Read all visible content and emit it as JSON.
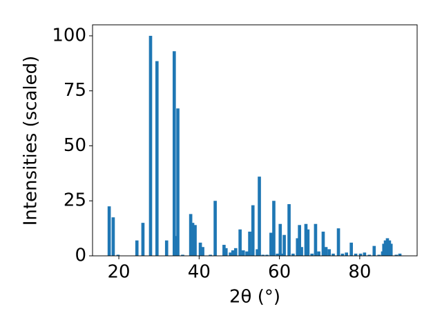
{
  "chart_data": {
    "type": "bar",
    "xlabel": "2θ (°)",
    "ylabel": "Intensities (scaled)",
    "color": "#1f77b4",
    "x": [
      17.6,
      18.6,
      19.8,
      24.5,
      26.0,
      27.9,
      29.5,
      31.9,
      33.8,
      34.1,
      34.7,
      35.9,
      37.9,
      38.4,
      39.0,
      40.3,
      40.9,
      42.8,
      44.0,
      46.2,
      46.7,
      47.8,
      48.4,
      49.1,
      50.2,
      51.0,
      51.9,
      52.6,
      53.4,
      54.5,
      55.0,
      55.9,
      56.9,
      57.9,
      58.6,
      59.5,
      60.2,
      60.9,
      61.2,
      62.4,
      63.4,
      64.5,
      65.0,
      65.5,
      66.6,
      67.1,
      68.1,
      69.0,
      69.8,
      70.9,
      71.6,
      72.4,
      73.4,
      74.7,
      75.7,
      76.7,
      77.9,
      79.0,
      80.2,
      81.2,
      82.4,
      83.6,
      84.8,
      85.7,
      86.0,
      86.4,
      86.9,
      87.4,
      87.8,
      89.1,
      90.0
    ],
    "values": [
      22.5,
      17.5,
      0.5,
      7,
      15,
      100,
      88.5,
      7,
      93,
      9,
      67,
      0.5,
      19,
      15,
      14,
      6,
      4,
      0.5,
      25,
      5,
      3.5,
      1.5,
      2.5,
      3.5,
      12,
      2.5,
      2,
      11,
      23,
      3,
      36,
      0.5,
      0.5,
      10.5,
      25,
      1,
      14.5,
      1,
      9.5,
      23.5,
      1,
      8,
      14,
      4,
      14.5,
      12,
      1,
      14.5,
      2,
      11,
      4,
      3,
      1,
      12.5,
      1,
      1.5,
      6,
      1,
      1,
      1.5,
      0.5,
      4.5,
      0.5,
      2,
      5.5,
      7,
      8,
      7,
      5.5,
      0.5,
      1
    ],
    "xlim": [
      13.45,
      94.3
    ],
    "ylim": [
      0,
      105
    ],
    "xticks": [
      20,
      40,
      60,
      80
    ],
    "yticks": [
      0,
      25,
      50,
      75,
      100
    ]
  }
}
